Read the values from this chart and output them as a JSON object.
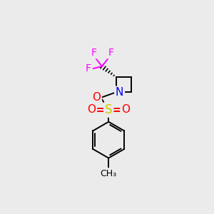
{
  "bg_color": "#ebebeb",
  "atom_colors": {
    "C": "#000000",
    "N": "#0000ff",
    "O": "#ff0000",
    "S": "#cccc00",
    "F": "#ff00ff"
  },
  "bond_color": "#000000",
  "fig_size": [
    3.0,
    3.0
  ],
  "dpi": 100
}
